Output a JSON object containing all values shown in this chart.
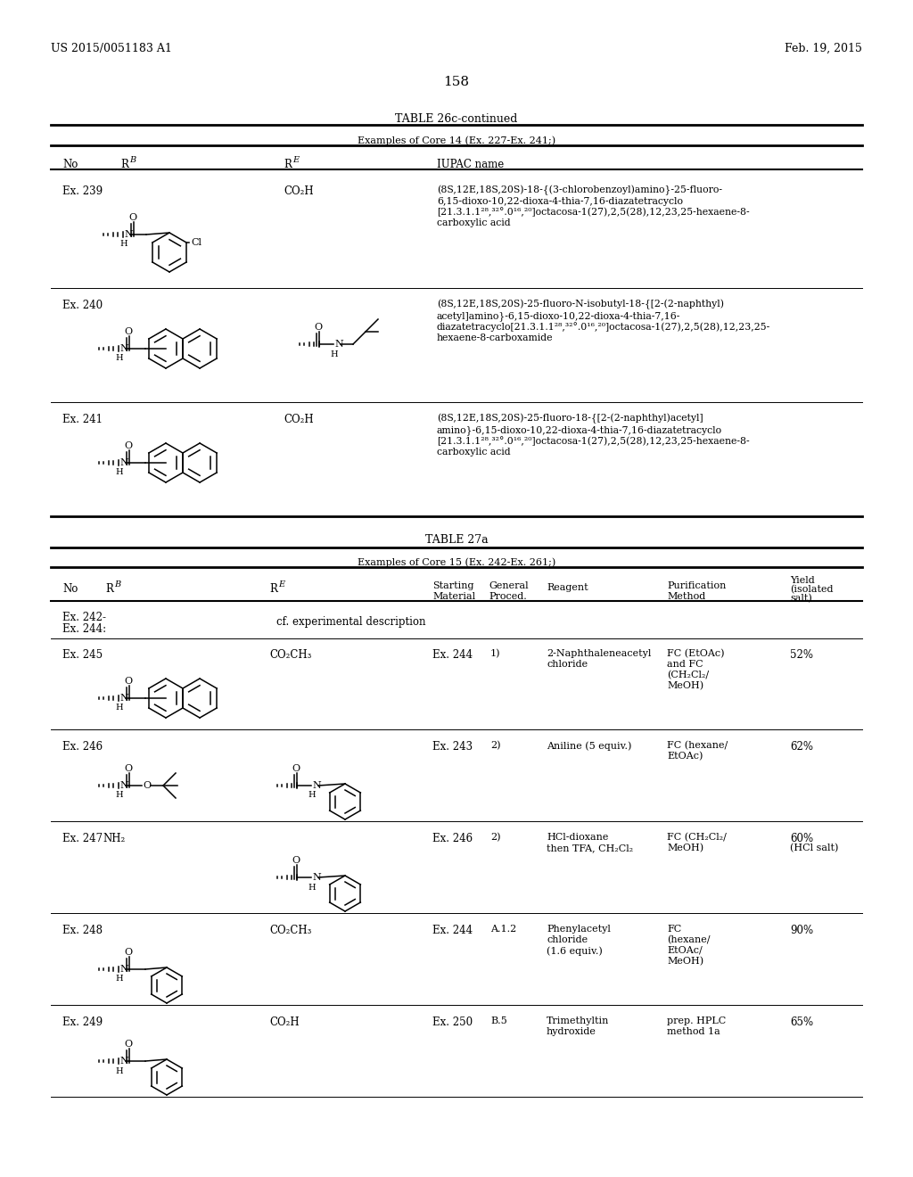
{
  "background_color": "#ffffff",
  "page_number": "158",
  "header_left": "US 2015/0051183 A1",
  "header_right": "Feb. 19, 2015",
  "table1_title": "TABLE 26c-continued",
  "table1_subtitle": "Examples of Core 14 (Ex. 227-Ex. 241;)",
  "table2_title": "TABLE 27a",
  "table2_subtitle": "Examples of Core 15 (Ex. 242-Ex. 261;)",
  "iupac239": "(8S,12E,18S,20S)-18-{(3-chlorobenzoyl)amino}-25-fluoro-\n6,15-dioxo-10,22-dioxa-4-thia-7,16-diazatetracyclo\n[21.3.1.1²⁸,³²°.0¹⁶,²⁰]octacosa-1(27),2,5(28),12,23,25-hexaene-8-\ncarboxylic acid",
  "iupac240": "(8S,12E,18S,20S)-25-fluoro-N-isobutyl-18-{[2-(2-naphthyl)\nacetyl]amino}-6,15-dioxo-10,22-dioxa-4-thia-7,16-\ndiazatetracyclo[21.3.1.1²⁸,³²°.0¹⁶,²⁰]octacosa-1(27),2,5(28),12,23,25-\nhexaene-8-carboxamide",
  "iupac241": "(8S,12E,18S,20S)-25-fluoro-18-{[2-(2-naphthyl)acetyl]\namino}-6,15-dioxo-10,22-dioxa-4-thia-7,16-diazatetracyclo\n[21.3.1.1²⁸,³²°.0¹⁶,²⁰]octacosa-1(27),2,5(28),12,23,25-hexaene-8-\ncarboxylic acid"
}
